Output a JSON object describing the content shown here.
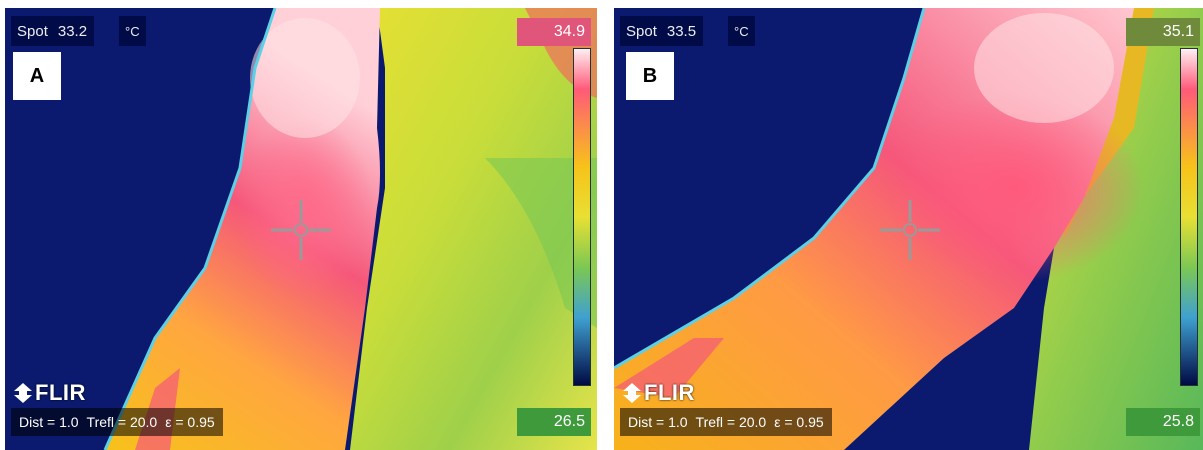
{
  "panels": [
    {
      "label": "A",
      "spot_label": "Spot",
      "spot_value": "33.2",
      "unit": "°C",
      "scale_max": "34.9",
      "scale_min": "26.5",
      "logo": "FLIR",
      "params": {
        "dist": "Dist = 1.0",
        "trefl": "Trefl = 20.0",
        "emissivity": "ε = 0.95"
      }
    },
    {
      "label": "B",
      "spot_label": "Spot",
      "spot_value": "33.5",
      "unit": "°C",
      "scale_max": "35.1",
      "scale_min": "25.8",
      "logo": "FLIR",
      "params": {
        "dist": "Dist = 1.0",
        "trefl": "Trefl = 20.0",
        "emissivity": "ε = 0.95"
      }
    }
  ],
  "colors": {
    "background_cold": "#0b1a6e",
    "scale_top": "#ff5a6e",
    "scale_bottom": "#000a44",
    "max_box": "#e0557a",
    "min_box": "#3e9a3a"
  }
}
